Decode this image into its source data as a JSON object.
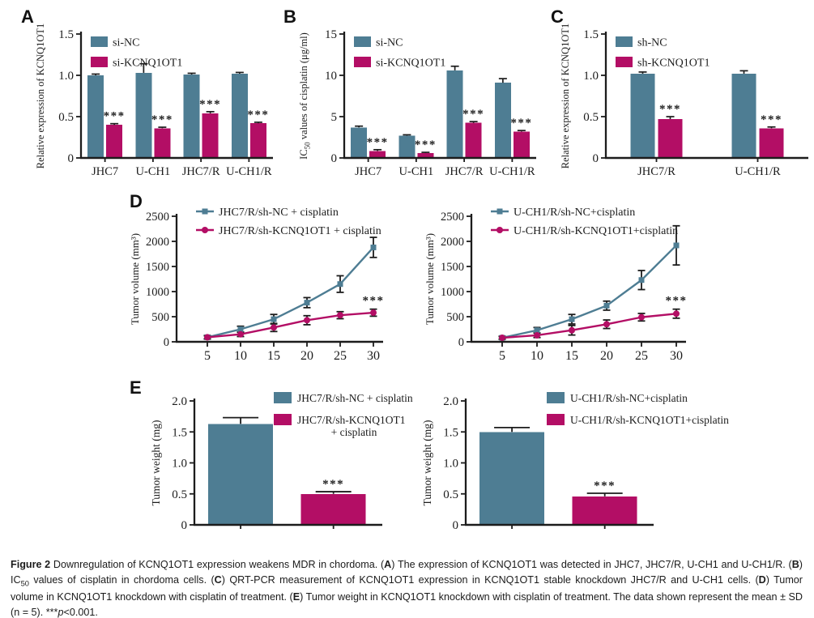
{
  "figure": {
    "panel_labels": {
      "A": "A",
      "B": "B",
      "C": "C",
      "D": "D",
      "E": "E"
    },
    "caption_segments": [
      {
        "t": "Figure 2 ",
        "b": true
      },
      {
        "t": "Downregulation of KCNQ1OT1 expression weakens MDR in chordoma. ("
      },
      {
        "t": "A",
        "b": true
      },
      {
        "t": ") The expression of KCNQ1OT1 was detected in JHC7, JHC7/R, U-CH1 and U-CH1/R. ("
      },
      {
        "t": "B",
        "b": true
      },
      {
        "t": ") IC"
      },
      {
        "t": "50",
        "sub": true
      },
      {
        "t": " values of cisplatin in chordoma cells. ("
      },
      {
        "t": "C",
        "b": true
      },
      {
        "t": ") QRT-PCR measurement of KCNQ1OT1 expression in KCNQ1OT1 stable knockdown JHC7/R and U-CH1 cells. ("
      },
      {
        "t": "D",
        "b": true
      },
      {
        "t": ") Tumor volume in KCNQ1OT1 knockdown with cisplatin of treatment. ("
      },
      {
        "t": "E",
        "b": true
      },
      {
        "t": ") Tumor weight in KCNQ1OT1 knockdown with cisplatin of treatment. The data shown represent the mean ± SD (n = 5). ***"
      },
      {
        "t": "p",
        "i": true
      },
      {
        "t": "<0.001."
      }
    ]
  },
  "colors": {
    "teal": "#4e7d93",
    "magenta": "#b30e65",
    "axis": "#1c1c1c"
  },
  "chart_data": [
    {
      "id": "A",
      "panel": "A",
      "type": "bar",
      "ylabel": "Relative expression of KCNQ1OT1",
      "ylabel_parts": [
        {
          "t": "Relative expression of KCNQ1OT1"
        }
      ],
      "ylim": [
        0,
        1.5
      ],
      "yticks": [
        0,
        0.5,
        1.0,
        1.5
      ],
      "ytick_labels": [
        "0",
        "0.5",
        "1.0",
        "1.5"
      ],
      "categories": [
        "JHC7",
        "U-CH1",
        "JHC7/R",
        "U-CH1/R"
      ],
      "grid": false,
      "legend_position": "top-left",
      "series": [
        {
          "name": "si-NC",
          "color_key": "teal",
          "values": [
            1.0,
            1.03,
            1.01,
            1.02
          ],
          "errors": [
            0.015,
            0.11,
            0.015,
            0.015
          ],
          "sig": [
            "",
            "",
            "",
            ""
          ]
        },
        {
          "name": "si-KCNQ1OT1",
          "color_key": "magenta",
          "values": [
            0.4,
            0.36,
            0.54,
            0.42
          ],
          "errors": [
            0.015,
            0.012,
            0.02,
            0.012
          ],
          "sig": [
            "***",
            "***",
            "***",
            "***"
          ]
        }
      ]
    },
    {
      "id": "B",
      "panel": "B",
      "type": "bar",
      "ylabel": "IC50 values of cisplatin (μg/ml)",
      "ylabel_parts": [
        {
          "t": "IC"
        },
        {
          "t": "50",
          "sub": true
        },
        {
          "t": " values of cisplatin (μg/ml)"
        }
      ],
      "ylim": [
        0,
        15
      ],
      "yticks": [
        0,
        5,
        10,
        15
      ],
      "ytick_labels": [
        "0",
        "5",
        "10",
        "15"
      ],
      "categories": [
        "JHC7",
        "U-CH1",
        "JHC7/R",
        "U-CH1/R"
      ],
      "grid": false,
      "legend_position": "top-left",
      "series": [
        {
          "name": "si-NC",
          "color_key": "teal",
          "values": [
            3.7,
            2.7,
            10.6,
            9.1
          ],
          "errors": [
            0.15,
            0.1,
            0.5,
            0.5
          ],
          "sig": [
            "",
            "",
            "",
            ""
          ]
        },
        {
          "name": "si-KCNQ1OT1",
          "color_key": "magenta",
          "values": [
            0.85,
            0.6,
            4.25,
            3.2
          ],
          "errors": [
            0.15,
            0.08,
            0.15,
            0.12
          ],
          "sig": [
            "***",
            "***",
            "***",
            "***"
          ]
        }
      ]
    },
    {
      "id": "C",
      "panel": "C",
      "type": "bar",
      "ylabel": "Relative expression of KCNQ1OT1",
      "ylabel_parts": [
        {
          "t": "Relative expression of KCNQ1OT1"
        }
      ],
      "ylim": [
        0,
        1.5
      ],
      "yticks": [
        0,
        0.5,
        1.0,
        1.5
      ],
      "ytick_labels": [
        "0",
        "0.5",
        "1.0",
        "1.5"
      ],
      "categories": [
        "JHC7/R",
        "U-CH1/R"
      ],
      "grid": false,
      "legend_position": "top-left",
      "series": [
        {
          "name": "sh-NC",
          "color_key": "teal",
          "values": [
            1.02,
            1.02
          ],
          "errors": [
            0.02,
            0.035
          ],
          "sig": [
            "",
            ""
          ]
        },
        {
          "name": "sh-KCNQ1OT1",
          "color_key": "magenta",
          "values": [
            0.47,
            0.36
          ],
          "errors": [
            0.03,
            0.015
          ],
          "sig": [
            "***",
            "***"
          ]
        }
      ]
    },
    {
      "id": "D1",
      "panel": "D",
      "type": "line",
      "ylabel": "Tumor volume (mm³)",
      "ylabel_parts": [
        {
          "t": "Tumor volume (mm³)"
        }
      ],
      "ylim": [
        0,
        2500
      ],
      "yticks": [
        0,
        500,
        1000,
        1500,
        2000,
        2500
      ],
      "ytick_labels": [
        "0",
        "500",
        "1000",
        "1500",
        "2000",
        "2500"
      ],
      "x": [
        5,
        10,
        15,
        20,
        25,
        30
      ],
      "xlabel": "",
      "grid": false,
      "legend_position": "top-left",
      "series": [
        {
          "name": "JHC7/R/sh-NC + cisplatin",
          "color_key": "teal",
          "marker": "square",
          "values": [
            90,
            250,
            450,
            780,
            1150,
            1880
          ],
          "errors": [
            35,
            60,
            95,
            100,
            165,
            200
          ]
        },
        {
          "name": "JHC7/R/sh-KCNQ1OT1 + cisplatin",
          "color_key": "magenta",
          "marker": "circle",
          "values": [
            90,
            150,
            285,
            430,
            530,
            580
          ],
          "errors": [
            30,
            45,
            80,
            90,
            70,
            70
          ],
          "sig_last": "***"
        }
      ]
    },
    {
      "id": "D2",
      "panel": "D",
      "type": "line",
      "ylabel": "Tumor volume (mm³)",
      "ylabel_parts": [
        {
          "t": "Tumor volume (mm³)"
        }
      ],
      "ylim": [
        0,
        2500
      ],
      "yticks": [
        0,
        500,
        1000,
        1500,
        2000,
        2500
      ],
      "ytick_labels": [
        "0",
        "500",
        "1000",
        "1500",
        "2000",
        "2500"
      ],
      "x": [
        5,
        10,
        15,
        20,
        25,
        30
      ],
      "xlabel": "",
      "grid": false,
      "legend_position": "top-left",
      "series": [
        {
          "name": "U-CH1/R/sh-NC+cisplatin",
          "color_key": "teal",
          "marker": "square",
          "values": [
            80,
            230,
            450,
            720,
            1230,
            1920
          ],
          "errors": [
            30,
            55,
            95,
            90,
            190,
            390
          ]
        },
        {
          "name": "U-CH1/R/sh-KCNQ1OT1+cisplatin",
          "color_key": "magenta",
          "marker": "circle",
          "values": [
            80,
            130,
            230,
            350,
            490,
            560
          ],
          "errors": [
            25,
            45,
            95,
            85,
            75,
            90
          ],
          "sig_last": "***"
        }
      ]
    },
    {
      "id": "E1",
      "panel": "E",
      "type": "bar-single",
      "ylabel": "Tumor weight (mg)",
      "ylabel_parts": [
        {
          "t": "Tumor weight (mg)"
        }
      ],
      "ylim": [
        0,
        2.0
      ],
      "yticks": [
        0,
        0.5,
        1.0,
        1.5,
        2.0
      ],
      "ytick_labels": [
        "0",
        "0.5",
        "1.0",
        "1.5",
        "2.0"
      ],
      "grid": false,
      "legend_position": "top-right",
      "bars": [
        {
          "name_lines": [
            "JHC7/R/sh-NC + cisplatin"
          ],
          "color_key": "teal",
          "value": 1.63,
          "error": 0.1,
          "sig": ""
        },
        {
          "name_lines": [
            "JHC7/R/sh-KCNQ1OT1",
            "+ cisplatin"
          ],
          "color_key": "magenta",
          "value": 0.5,
          "error": 0.035,
          "sig": "***"
        }
      ]
    },
    {
      "id": "E2",
      "panel": "E",
      "type": "bar-single",
      "ylabel": "Tumor weight (mg)",
      "ylabel_parts": [
        {
          "t": "Tumor weight (mg)"
        }
      ],
      "ylim": [
        0,
        2.0
      ],
      "yticks": [
        0,
        0.5,
        1.0,
        1.5,
        2.0
      ],
      "ytick_labels": [
        "0",
        "0.5",
        "1.0",
        "1.5",
        "2.0"
      ],
      "grid": false,
      "legend_position": "top-right",
      "bars": [
        {
          "name_lines": [
            "U-CH1/R/sh-NC+cisplatin"
          ],
          "color_key": "teal",
          "value": 1.5,
          "error": 0.07,
          "sig": ""
        },
        {
          "name_lines": [
            "U-CH1/R/sh-KCNQ1OT1+cisplatin"
          ],
          "color_key": "magenta",
          "value": 0.46,
          "error": 0.05,
          "sig": "***"
        }
      ]
    }
  ]
}
